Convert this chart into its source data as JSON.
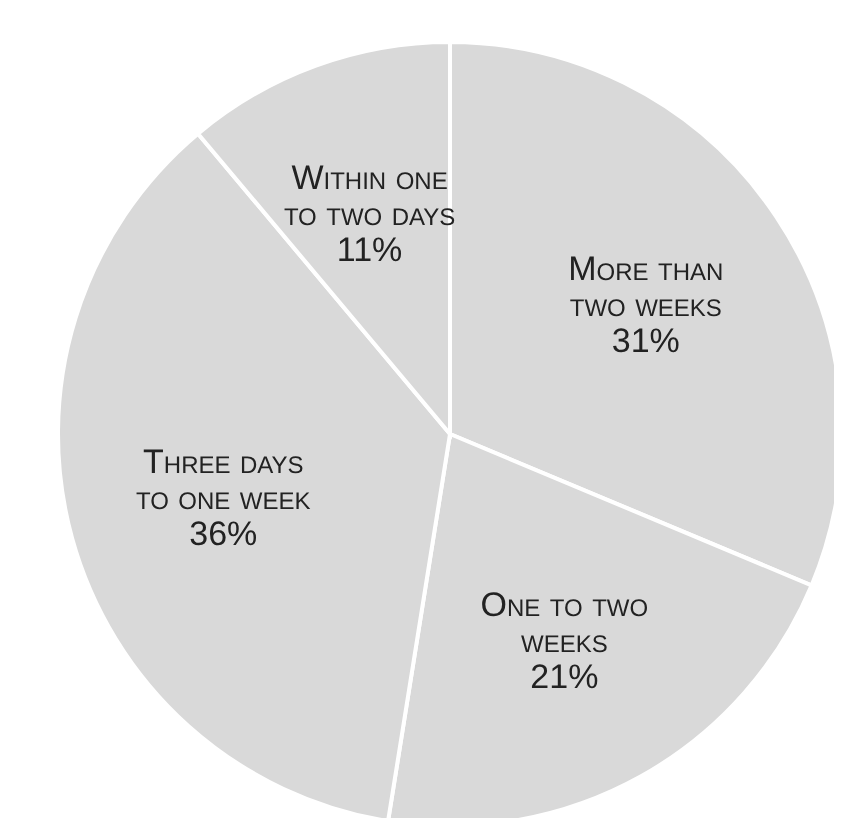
{
  "chart_data": {
    "type": "pie",
    "categories": [
      "More than two weeks",
      "One to two weeks",
      "Three days to one week",
      "Within one to two days"
    ],
    "values": [
      31,
      21,
      36,
      11
    ],
    "colors": [
      "#d9d9d9",
      "#d9d9d9",
      "#d9d9d9",
      "#d9d9d9"
    ],
    "value_labels": [
      "31%",
      "21%",
      "36%",
      "11%"
    ],
    "legend": false
  }
}
